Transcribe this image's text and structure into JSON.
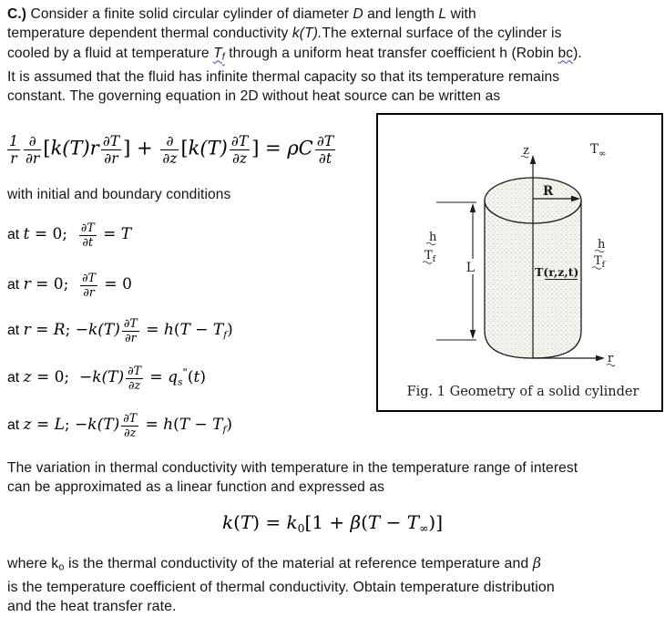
{
  "para1": {
    "lines": [
      [
        {
          "t": "C.)",
          "b": 1
        },
        {
          "t": " Consider a finite solid circular cylinder of diameter "
        },
        {
          "t": "D",
          "i": 1
        },
        {
          "t": " and length "
        },
        {
          "t": "L",
          "i": 1
        },
        {
          "t": " with"
        }
      ],
      [
        {
          "t": "temperature dependent thermal conductivity "
        },
        {
          "t": "k(T).",
          "i": 1
        },
        {
          "t": "The external surface of the cylinder is"
        }
      ],
      [
        {
          "t": "cooled by a fluid at temperature "
        },
        {
          "t": "T",
          "i": 1,
          "w": 1
        },
        {
          "t": "f",
          "i": 1,
          "sub": 1,
          "w": 1
        },
        {
          "t": " through a uniform heat transfer coefficient h (Robin "
        },
        {
          "t": "bc",
          "w": 1
        },
        {
          "t": ")."
        }
      ],
      [
        {
          "t": "It is assumed that the fluid has infinite thermal capacity so that its temperature remains"
        }
      ],
      [
        {
          "t": "constant. The governing equation in 2D without heat source can be written as"
        }
      ]
    ]
  },
  "main_eq": {
    "tokens": [
      {
        "f": [
          "1",
          "r"
        ]
      },
      {
        "f": [
          "∂",
          "∂r"
        ]
      },
      {
        "t": "["
      },
      {
        "v": "k(T)r"
      },
      {
        "f": [
          "∂T",
          "∂r"
        ]
      },
      {
        "t": "] + "
      },
      {
        "f": [
          "∂",
          "∂z"
        ]
      },
      {
        "t": "["
      },
      {
        "v": "k(T)"
      },
      {
        "f": [
          "∂T",
          "∂z"
        ]
      },
      {
        "t": "] = "
      },
      {
        "v": "ρC"
      },
      {
        "f": [
          "∂T",
          "∂t"
        ]
      }
    ]
  },
  "bc_intro": "with initial and boundary conditions",
  "bc1": {
    "tokens": [
      {
        "t": "at ",
        "rm": 1
      },
      {
        "v": "t"
      },
      {
        "t": " = 0;  "
      },
      {
        "f": [
          "∂T",
          "∂t"
        ]
      },
      {
        "t": " = "
      },
      {
        "v": "T"
      }
    ]
  },
  "bc2": {
    "tokens": [
      {
        "t": "at ",
        "rm": 1
      },
      {
        "v": "r"
      },
      {
        "t": " = 0;  "
      },
      {
        "f": [
          "∂T",
          "∂r"
        ]
      },
      {
        "t": " = 0"
      }
    ]
  },
  "bc3": {
    "tokens": [
      {
        "t": "at ",
        "rm": 1
      },
      {
        "v": "r"
      },
      {
        "t": " = "
      },
      {
        "v": "R"
      },
      {
        "t": "; −"
      },
      {
        "v": "k(T)"
      },
      {
        "f": [
          "∂T",
          "∂r"
        ]
      },
      {
        "t": " = "
      },
      {
        "v": "h"
      },
      {
        "t": "("
      },
      {
        "v": "T"
      },
      {
        "t": " − "
      },
      {
        "v": "T"
      },
      {
        "sb": "f",
        "i": 1
      },
      {
        "t": ")"
      }
    ]
  },
  "bc4": {
    "tokens": [
      {
        "t": "at ",
        "rm": 1
      },
      {
        "v": "z"
      },
      {
        "t": " = 0;  −"
      },
      {
        "v": "k(T)"
      },
      {
        "f": [
          "∂T",
          "∂z"
        ]
      },
      {
        "t": " = "
      },
      {
        "v": "q"
      },
      {
        "sb": "s",
        "i": 1
      },
      {
        "sp": "\""
      },
      {
        "t": "("
      },
      {
        "v": "t"
      },
      {
        "t": ")"
      }
    ]
  },
  "bc5": {
    "tokens": [
      {
        "t": "at ",
        "rm": 1
      },
      {
        "v": "z"
      },
      {
        "t": " = "
      },
      {
        "v": "L"
      },
      {
        "t": "; −"
      },
      {
        "v": "k(T)"
      },
      {
        "f": [
          "∂T",
          "∂z"
        ]
      },
      {
        "t": " = "
      },
      {
        "v": "h"
      },
      {
        "t": "("
      },
      {
        "v": "T"
      },
      {
        "t": " − "
      },
      {
        "v": "T"
      },
      {
        "sb": "f",
        "i": 1
      },
      {
        "t": ")"
      }
    ]
  },
  "para2": {
    "lines": [
      "The variation in thermal conductivity with temperature in the temperature range of interest",
      "can be approximated as a linear function and expressed as"
    ]
  },
  "k_eq": {
    "tokens": [
      {
        "v": "k"
      },
      {
        "t": "("
      },
      {
        "v": "T"
      },
      {
        "t": ") = "
      },
      {
        "v": "k"
      },
      {
        "sb": "0"
      },
      {
        "t": "[1 + "
      },
      {
        "v": "β"
      },
      {
        "t": "("
      },
      {
        "v": "T"
      },
      {
        "t": " − "
      },
      {
        "v": "T"
      },
      {
        "sb": "∞"
      },
      {
        "t": ")]"
      }
    ]
  },
  "para3": {
    "lines": [
      [
        {
          "t": "where k"
        },
        {
          "t": "o",
          "sub": 1
        },
        {
          "t": " is the thermal conductivity of the material at reference temperature and "
        },
        {
          "t": "β",
          "i": 1,
          "sf": 1
        }
      ],
      [
        {
          "t": "is the temperature coefficient of thermal conductivity. Obtain temperature distribution"
        }
      ],
      [
        {
          "t": "and the heat transfer rate."
        }
      ]
    ]
  },
  "figure": {
    "caption": "Fig. 1   Geometry of a solid cylinder",
    "z_label": "z",
    "t_inf_base": "T",
    "t_inf_sub": "∞",
    "radius_label": "R",
    "length_label": "L",
    "h_label": "h",
    "tf_base": "T",
    "tf_sub": "f",
    "field_label": "T(r,z,t)",
    "r_label": "r"
  },
  "colors": {
    "squiggle_blue": "#3b43c4",
    "ink": "#1b1b1b",
    "stipple_bg": "#f6f4ee",
    "stipple_dot": "#a39a88"
  }
}
